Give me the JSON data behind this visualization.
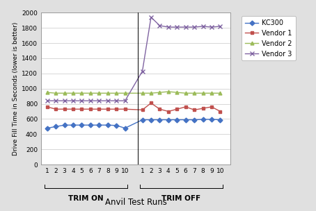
{
  "xlabel": "Anvil Test Runs",
  "ylabel": "Drive Fill Time in Seconds (lower is better)",
  "ylim": [
    0,
    2000
  ],
  "yticks": [
    0,
    200,
    400,
    600,
    800,
    1000,
    1200,
    1400,
    1600,
    1800,
    2000
  ],
  "trim_on_labels": [
    "1",
    "2",
    "3",
    "4",
    "5",
    "6",
    "7",
    "8",
    "9",
    "10"
  ],
  "trim_off_labels": [
    "1",
    "2",
    "3",
    "4",
    "5",
    "6",
    "7",
    "8",
    "9",
    "10"
  ],
  "kc300_trim_on": [
    480,
    500,
    520,
    520,
    520,
    520,
    520,
    520,
    515,
    480
  ],
  "kc300_trim_off": [
    590,
    590,
    590,
    590,
    590,
    590,
    590,
    595,
    595,
    590
  ],
  "vendor1_trim_on": [
    760,
    730,
    730,
    730,
    730,
    730,
    730,
    730,
    730,
    730
  ],
  "vendor1_trim_off": [
    720,
    810,
    730,
    700,
    730,
    760,
    720,
    740,
    760,
    700
  ],
  "vendor2_trim_on": [
    950,
    940,
    940,
    940,
    940,
    940,
    940,
    940,
    940,
    940
  ],
  "vendor2_trim_off": [
    940,
    940,
    950,
    960,
    950,
    940,
    940,
    940,
    940,
    940
  ],
  "vendor3_trim_on": [
    840,
    840,
    840,
    840,
    840,
    840,
    840,
    840,
    840,
    840
  ],
  "vendor3_trim_off": [
    1230,
    1940,
    1830,
    1810,
    1810,
    1810,
    1810,
    1820,
    1810,
    1820
  ],
  "color_kc300": "#4472C4",
  "color_vendor1": "#C0504D",
  "color_vendor2": "#9BBB59",
  "color_vendor3": "#8064A2",
  "bg_color": "#FFFFFF",
  "fig_bg_color": "#E0E0E0",
  "grid_color": "#C8C8C8",
  "label_kc300": "KC300",
  "label_vendor1": "Vendor 1",
  "label_vendor2": "Vendor 2",
  "label_vendor3": "Vendor 3",
  "trim_on_label": "TRIM ON",
  "trim_off_label": "TRIM OFF",
  "figsize": [
    4.54,
    3.04
  ],
  "dpi": 100
}
